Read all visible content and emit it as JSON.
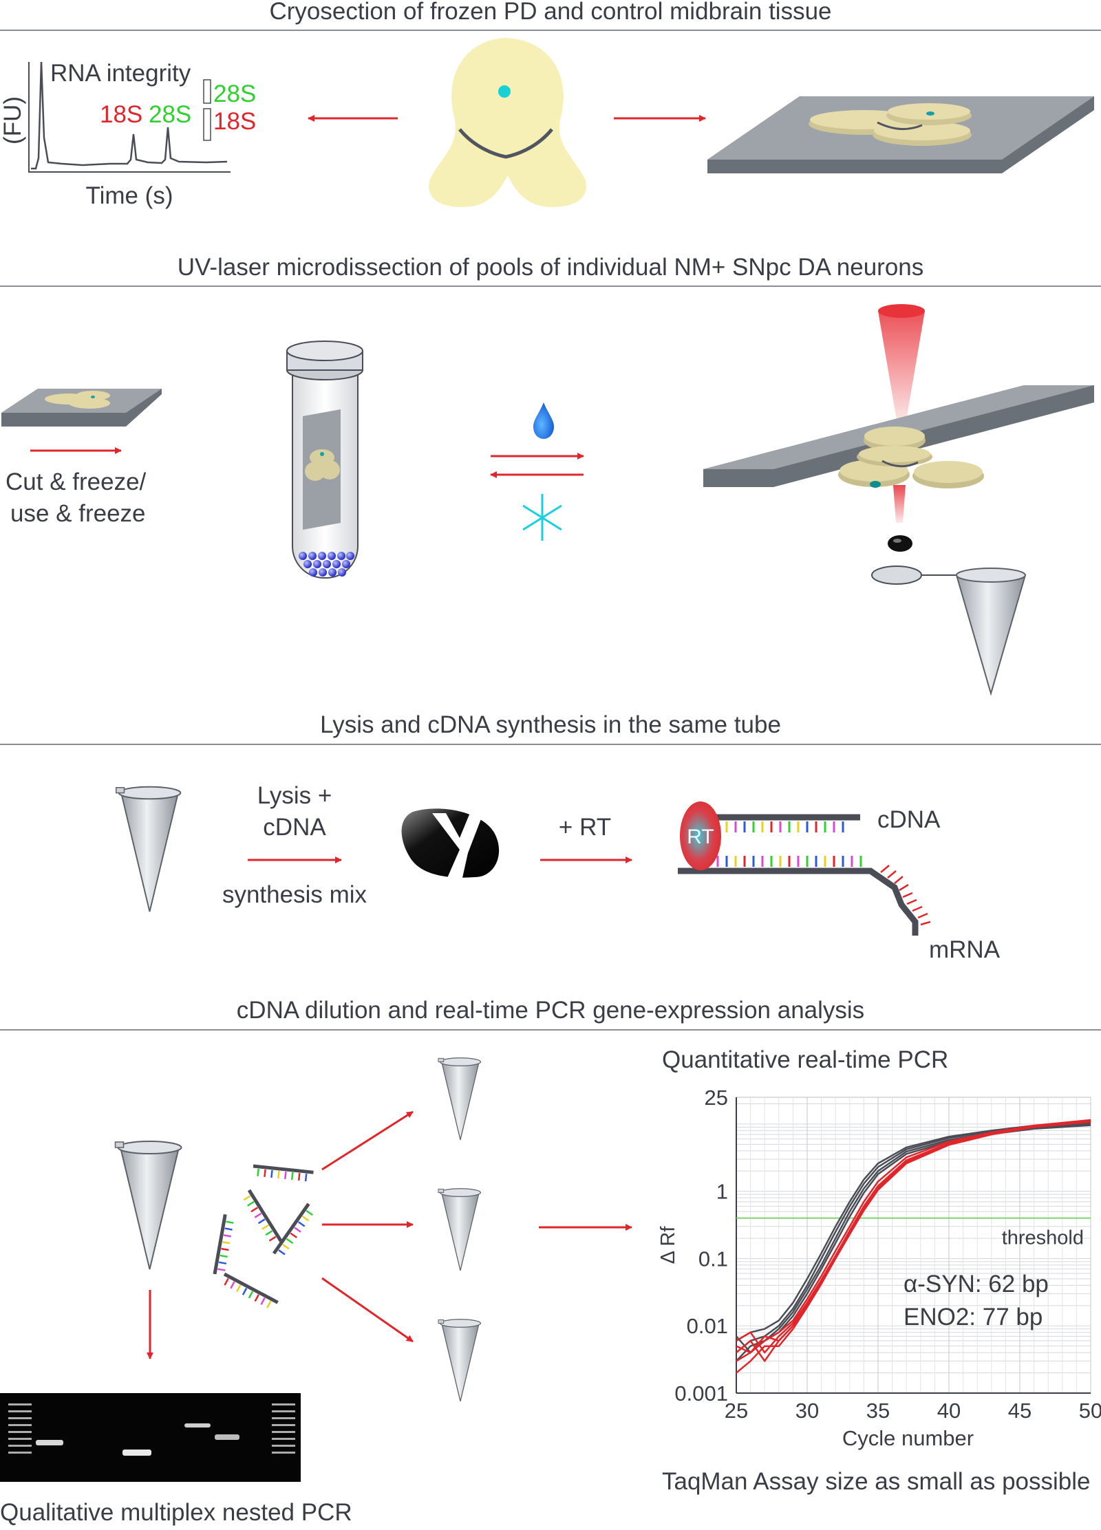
{
  "sections": {
    "s1": "Cryosection of frozen PD and control midbrain tissue",
    "s2": "UV-laser microdissection of pools of individual NM+ SNpc DA neurons",
    "s3": "Lysis and cDNA synthesis in the same tube",
    "s4": "cDNA dilution and real-time PCR gene-expression analysis"
  },
  "rna_trace": {
    "title": "RNA integrity",
    "ylabel": "(FU)",
    "xlabel": "Time (s)",
    "peak_18s": "18S",
    "peak_28s": "28S",
    "legend_28s": "28S",
    "legend_18s": "18S"
  },
  "step2": {
    "cut_line1": "Cut & freeze/",
    "cut_line2": "use & freeze"
  },
  "step3": {
    "lysis_line1": "Lysis +",
    "lysis_line2": "cDNA",
    "lysis_line3": "synthesis mix",
    "rt_arrow": "+ RT",
    "rt_label": "RT",
    "cdna_label": "cDNA",
    "mrna_label": "mRNA"
  },
  "step4": {
    "qpcr_title": "Quantitative real-time PCR",
    "taqman_caption": "TaqMan Assay size as small as possible",
    "gel_caption": "Qualitative multiplex nested PCR"
  },
  "chart_data": {
    "type": "line",
    "title": "Quantitative real-time PCR",
    "xlabel": "Cycle number",
    "ylabel": "Δ Rf",
    "xlim": [
      25,
      50
    ],
    "ylim": [
      0.001,
      25
    ],
    "y_scale": "log",
    "x_ticks": [
      "25",
      "30",
      "35",
      "40",
      "45",
      "50"
    ],
    "y_ticks": [
      "0.001",
      "0.01",
      "0.1",
      "1",
      "25"
    ],
    "threshold": 0.4,
    "threshold_label": "threshold",
    "annotation_1": "α-SYN: 62 bp",
    "annotation_2": "ENO2: 77 bp",
    "grid": true,
    "colors": {
      "gray": "#4a4d55",
      "red": "#e0262b",
      "threshold": "#7ed36a"
    },
    "series": [
      {
        "color": "gray",
        "x": [
          25,
          26,
          27,
          28,
          29,
          30,
          31,
          32,
          33,
          34,
          35,
          37,
          40,
          43,
          46,
          50
        ],
        "values": [
          0.006,
          0.008,
          0.009,
          0.012,
          0.022,
          0.05,
          0.12,
          0.3,
          0.7,
          1.5,
          2.6,
          4.5,
          6.5,
          8,
          9.5,
          11
        ]
      },
      {
        "color": "gray",
        "x": [
          25,
          26,
          27,
          28,
          29,
          30,
          31,
          32,
          33,
          34,
          35,
          37,
          40,
          43,
          46,
          50
        ],
        "values": [
          0.004,
          0.006,
          0.007,
          0.01,
          0.018,
          0.04,
          0.1,
          0.25,
          0.6,
          1.3,
          2.3,
          4.2,
          6.2,
          7.8,
          9.2,
          10.5
        ]
      },
      {
        "color": "gray",
        "x": [
          25,
          26,
          27,
          28,
          29,
          30,
          31,
          32,
          33,
          34,
          35,
          37,
          40,
          43,
          46,
          50
        ],
        "values": [
          0.007,
          0.004,
          0.006,
          0.009,
          0.016,
          0.035,
          0.08,
          0.2,
          0.5,
          1.1,
          2,
          3.9,
          5.8,
          7.4,
          8.8,
          10
        ]
      },
      {
        "color": "gray",
        "x": [
          25,
          26,
          27,
          28,
          29,
          30,
          31,
          32,
          33,
          34,
          35,
          37,
          40,
          43,
          46,
          50
        ],
        "values": [
          0.003,
          0.005,
          0.006,
          0.008,
          0.014,
          0.03,
          0.07,
          0.17,
          0.42,
          0.95,
          1.8,
          3.6,
          5.5,
          7.1,
          8.5,
          9.6
        ]
      },
      {
        "color": "red",
        "x": [
          25,
          26,
          27,
          28,
          29,
          30,
          31,
          32,
          33,
          34,
          35,
          37,
          40,
          43,
          46,
          50
        ],
        "values": [
          0.003,
          0.004,
          0.006,
          0.008,
          0.012,
          0.025,
          0.055,
          0.13,
          0.3,
          0.7,
          1.4,
          3.2,
          5.5,
          7.5,
          9.5,
          11.5
        ]
      },
      {
        "color": "red",
        "x": [
          25,
          26,
          27,
          28,
          29,
          30,
          31,
          32,
          33,
          34,
          35,
          37,
          40,
          43,
          46,
          50
        ],
        "values": [
          0.006,
          0.008,
          0.004,
          0.007,
          0.011,
          0.022,
          0.048,
          0.11,
          0.26,
          0.6,
          1.2,
          2.9,
          5.2,
          7.2,
          9.2,
          11
        ]
      },
      {
        "color": "red",
        "x": [
          25,
          26,
          27,
          28,
          29,
          30,
          31,
          32,
          33,
          34,
          35,
          37,
          40,
          43,
          46,
          50
        ],
        "values": [
          0.002,
          0.003,
          0.005,
          0.005,
          0.009,
          0.019,
          0.042,
          0.1,
          0.23,
          0.52,
          1.05,
          2.6,
          4.9,
          7,
          9,
          10.8
        ]
      },
      {
        "color": "red",
        "x": [
          25,
          26,
          27,
          28,
          29,
          30,
          31,
          32,
          33,
          34,
          35,
          37,
          40,
          43,
          46,
          50
        ],
        "values": [
          0.005,
          0.004,
          0.007,
          0.006,
          0.01,
          0.02,
          0.045,
          0.105,
          0.24,
          0.55,
          1.1,
          2.7,
          5,
          7.1,
          9.1,
          10.9
        ]
      },
      {
        "color": "red",
        "x": [
          25,
          26,
          27,
          28,
          29,
          30,
          31,
          32,
          33,
          34,
          35,
          37,
          40,
          43,
          46,
          50
        ],
        "values": [
          0.004,
          0.006,
          0.003,
          0.006,
          0.01,
          0.021,
          0.046,
          0.108,
          0.25,
          0.57,
          1.15,
          2.8,
          5.1,
          7.3,
          9.3,
          11.2
        ]
      }
    ]
  }
}
